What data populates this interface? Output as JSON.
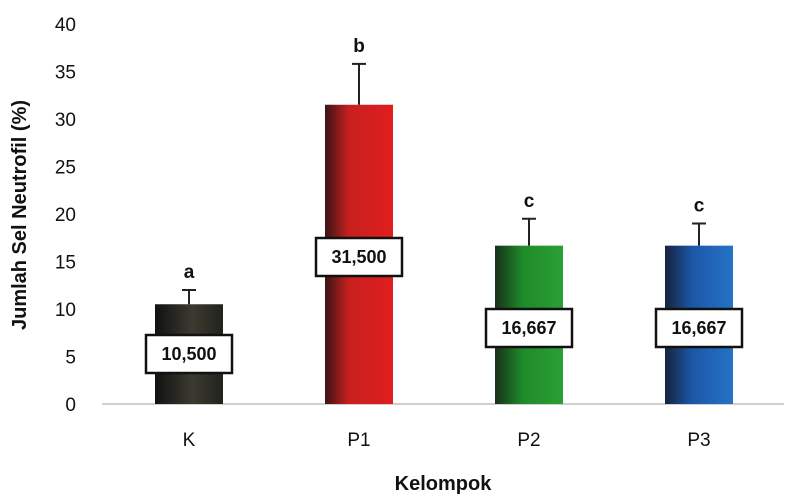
{
  "chart_data": {
    "type": "bar",
    "title": "",
    "xlabel": "Kelompok",
    "ylabel": "Jumlah Sel Neutrofil (%)",
    "ylim": [
      0,
      40
    ],
    "yticks": [
      0,
      5,
      10,
      15,
      20,
      25,
      30,
      35,
      40
    ],
    "grid": false,
    "categories": [
      "K",
      "P1",
      "P2",
      "P3"
    ],
    "values": [
      10.5,
      31.5,
      16.667,
      16.667
    ],
    "data_labels": [
      "10,500",
      "31,500",
      "16,667",
      "16,667"
    ],
    "error_upper": [
      12.0,
      35.8,
      19.5,
      19.0
    ],
    "significance_letters": [
      "a",
      "b",
      "c",
      "c"
    ],
    "colors": [
      "#2a2a24",
      "#d81c1c",
      "#23932a",
      "#1e5fb0"
    ]
  }
}
